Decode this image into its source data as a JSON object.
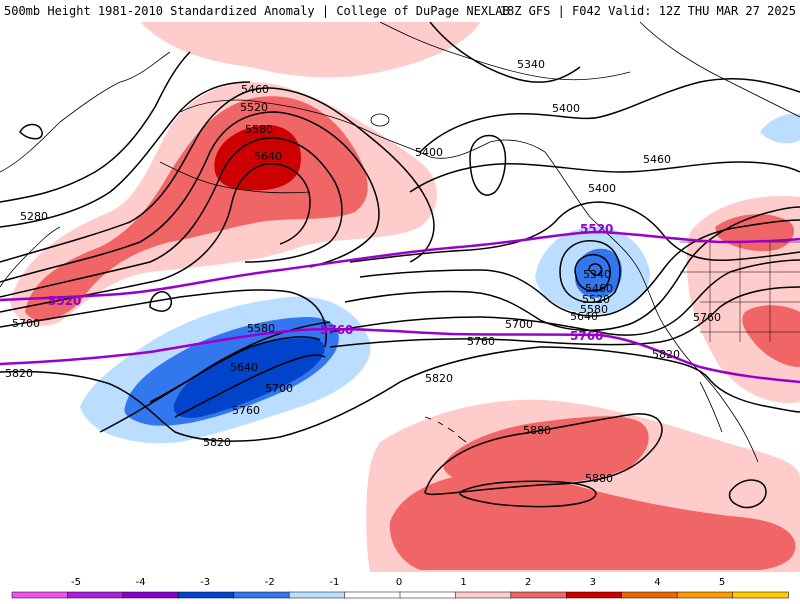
{
  "header": {
    "title_left": "500mb Height 1981-2010 Standardized Anomaly | College of DuPage NEXLAB",
    "title_right": "18Z GFS | F042 Valid: 12Z THU MAR 27 2025"
  },
  "map": {
    "field": "500mb height standardized anomaly",
    "contour_labels": [
      {
        "id": "c5460a",
        "text": "5460"
      },
      {
        "id": "c5520a",
        "text": "5520"
      },
      {
        "id": "c5580a",
        "text": "5580"
      },
      {
        "id": "c5640a",
        "text": "5640"
      },
      {
        "id": "c5280",
        "text": "5280"
      },
      {
        "id": "c5700a",
        "text": "5700"
      },
      {
        "id": "c5820a",
        "text": "5820"
      },
      {
        "id": "c5580b",
        "text": "5580"
      },
      {
        "id": "c5640b",
        "text": "5640"
      },
      {
        "id": "c5700b",
        "text": "5700"
      },
      {
        "id": "c5760a",
        "text": "5760"
      },
      {
        "id": "c5820b",
        "text": "5820"
      },
      {
        "id": "c5820c",
        "text": "5820"
      },
      {
        "id": "c5760b",
        "text": "5760"
      },
      {
        "id": "c5700c",
        "text": "5700"
      },
      {
        "id": "c5340a",
        "text": "5340"
      },
      {
        "id": "c5400a",
        "text": "5400"
      },
      {
        "id": "c5400b",
        "text": "5400"
      },
      {
        "id": "c5460b",
        "text": "5460"
      },
      {
        "id": "c5400c",
        "text": "5400"
      },
      {
        "id": "c5340b",
        "text": "5340"
      },
      {
        "id": "c5460c",
        "text": "5460"
      },
      {
        "id": "c5520b",
        "text": "5520"
      },
      {
        "id": "c5580c",
        "text": "5580"
      },
      {
        "id": "c5640c",
        "text": "5640"
      },
      {
        "id": "c5760c",
        "text": "5760"
      },
      {
        "id": "c5820d",
        "text": "5820"
      },
      {
        "id": "c5880a",
        "text": "5880"
      },
      {
        "id": "c5880b",
        "text": "5880"
      }
    ],
    "reference_contours": [
      {
        "id": "p5520a",
        "text": "5520",
        "color": "#9900cc"
      },
      {
        "id": "p5520b",
        "text": "5520",
        "color": "#9900cc"
      },
      {
        "id": "p5760a",
        "text": "5760",
        "color": "#9900cc"
      },
      {
        "id": "p5760b",
        "text": "5760",
        "color": "#9900cc"
      }
    ],
    "anomaly_colors": {
      "-5": "#ff66ff",
      "-4": "#8800cc",
      "-3": "#0044cc",
      "-2": "#3377ee",
      "-1": "#bbddff",
      "0": "#ffffff",
      "1": "#ffcccc",
      "2": "#f06666",
      "3": "#cc0000",
      "4": "#ff9900",
      "5": "#ffcc00"
    }
  },
  "colorbar": {
    "ticks": [
      "-5",
      "-4",
      "-3",
      "-2",
      "-1",
      "0",
      "1",
      "2",
      "3",
      "4",
      "5"
    ],
    "segments": [
      {
        "color": "#ee55ee"
      },
      {
        "color": "#aa22dd"
      },
      {
        "color": "#8800cc"
      },
      {
        "color": "#0044cc"
      },
      {
        "color": "#3377ee"
      },
      {
        "color": "#bbddff"
      },
      {
        "color": "#ffffff"
      },
      {
        "color": "#ffffff"
      },
      {
        "color": "#ffcccc"
      },
      {
        "color": "#f06666"
      },
      {
        "color": "#cc0000"
      },
      {
        "color": "#ee6600"
      },
      {
        "color": "#ff9900"
      },
      {
        "color": "#ffcc00"
      }
    ]
  }
}
